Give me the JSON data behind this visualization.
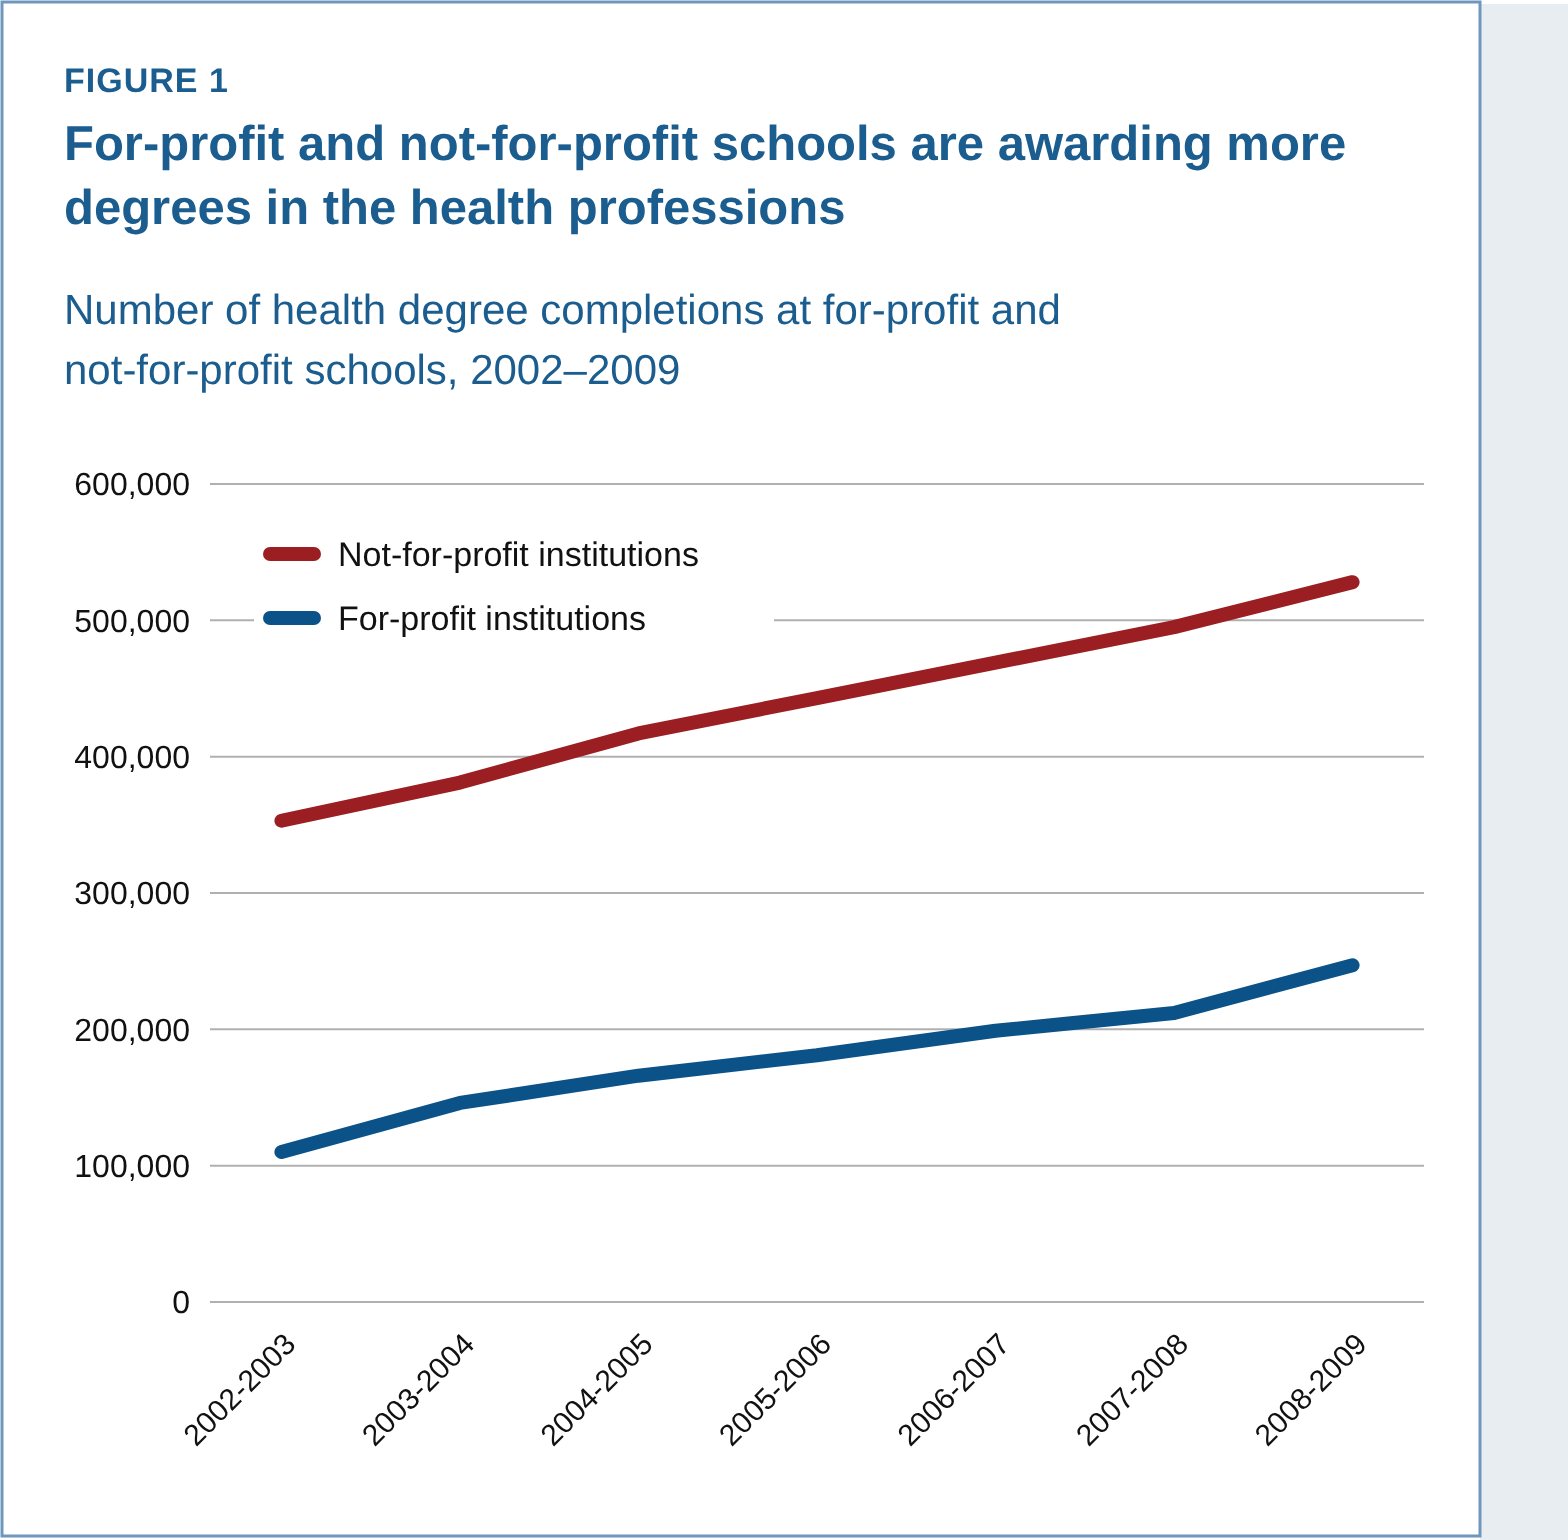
{
  "chart_data": {
    "type": "line",
    "title": "For-profit and not-for-profit schools are awarding more degrees in the health professions",
    "subtitle": "Number of health degree completions at for-profit and not-for-profit schools, 2002–2009",
    "annotations": [
      "FIGURE 1"
    ],
    "categories": [
      "2002-2003",
      "2003-2004",
      "2004-2005",
      "2005-2006",
      "2006-2007",
      "2007-2008",
      "2008-2009"
    ],
    "series": [
      {
        "name": "Not-for-profit institutions",
        "color": "#9b1f22",
        "values": [
          353000,
          381000,
          417000,
          443000,
          469000,
          495000,
          528000
        ]
      },
      {
        "name": "For-profit institutions",
        "color": "#0b5289",
        "values": [
          110000,
          146000,
          166000,
          181000,
          199000,
          212000,
          247000
        ]
      }
    ],
    "ylim": [
      0,
      600000
    ],
    "yticks": [
      {
        "value": 0,
        "label": "0"
      },
      {
        "value": 100000,
        "label": "100,000"
      },
      {
        "value": 200000,
        "label": "200,000"
      },
      {
        "value": 300000,
        "label": "300,000"
      },
      {
        "value": 400000,
        "label": "400,000"
      },
      {
        "value": 500000,
        "label": "500,000"
      },
      {
        "value": 600000,
        "label": "600,000"
      }
    ],
    "grid": "y",
    "legend": "top left",
    "marker": "none",
    "line_style": "solid"
  }
}
